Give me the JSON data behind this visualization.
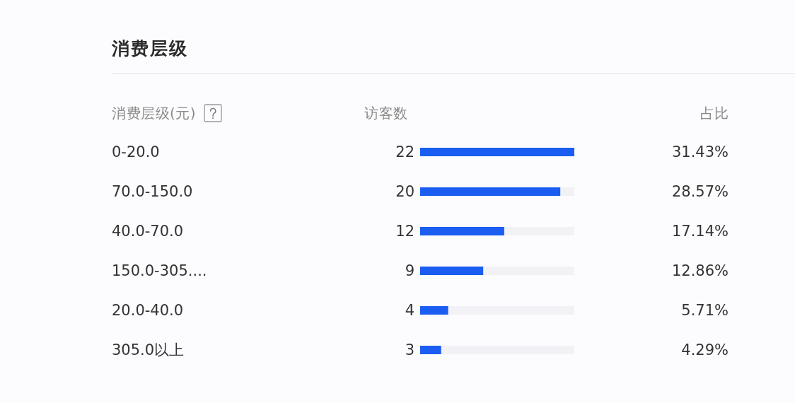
{
  "chart_data": {
    "type": "bar",
    "orientation": "horizontal",
    "title": "消费层级",
    "ylabel": "消费层级(元)",
    "xlabel": "访客数",
    "categories": [
      "0-20.0",
      "70.0-150.0",
      "40.0-70.0",
      "150.0-305....",
      "20.0-40.0",
      "305.0以上"
    ],
    "values": [
      22,
      20,
      12,
      9,
      4,
      3
    ],
    "color": "#1a5df0",
    "xlim": [
      0,
      22
    ],
    "data_labels": true,
    "tick_labels": "y",
    "annotations": [
      "占比",
      "31.43%",
      "28.57%",
      "17.14%",
      "12.86%",
      "5.71%",
      "4.29%"
    ]
  }
}
